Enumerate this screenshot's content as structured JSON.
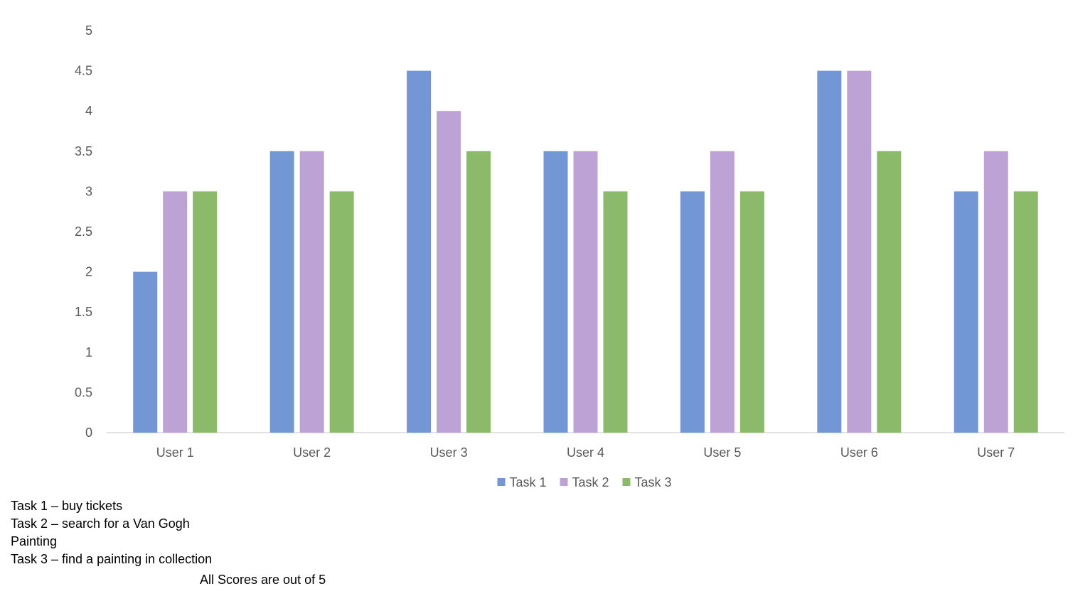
{
  "chart_data": {
    "type": "bar",
    "categories": [
      "User 1",
      "User 2",
      "User 3",
      "User 4",
      "User 5",
      "User 6",
      "User 7"
    ],
    "series": [
      {
        "name": "Task 1",
        "color": "#7396D4",
        "values": [
          2,
          3.5,
          4.5,
          3.5,
          3,
          4.5,
          3
        ]
      },
      {
        "name": "Task 2",
        "color": "#BDA2D6",
        "values": [
          3,
          3.5,
          4,
          3.5,
          3.5,
          4.5,
          3.5
        ]
      },
      {
        "name": "Task 3",
        "color": "#8CBA6B",
        "values": [
          3,
          3,
          3.5,
          3,
          3,
          3.5,
          3
        ]
      }
    ],
    "yticks": [
      "0",
      "0.5",
      "1",
      "1.5",
      "2",
      "2.5",
      "3",
      "3.5",
      "4",
      "4.5",
      "5"
    ],
    "ylim": [
      0,
      5
    ],
    "title": "",
    "xlabel": "",
    "ylabel": "",
    "grid": false,
    "legend_position": "bottom"
  },
  "notes": {
    "lines": [
      "Task 1 – buy tickets",
      "Task 2 –  search for a Van Gogh Painting",
      "Task 3 – find a painting in collection"
    ],
    "footnote": "All Scores are out of 5"
  }
}
